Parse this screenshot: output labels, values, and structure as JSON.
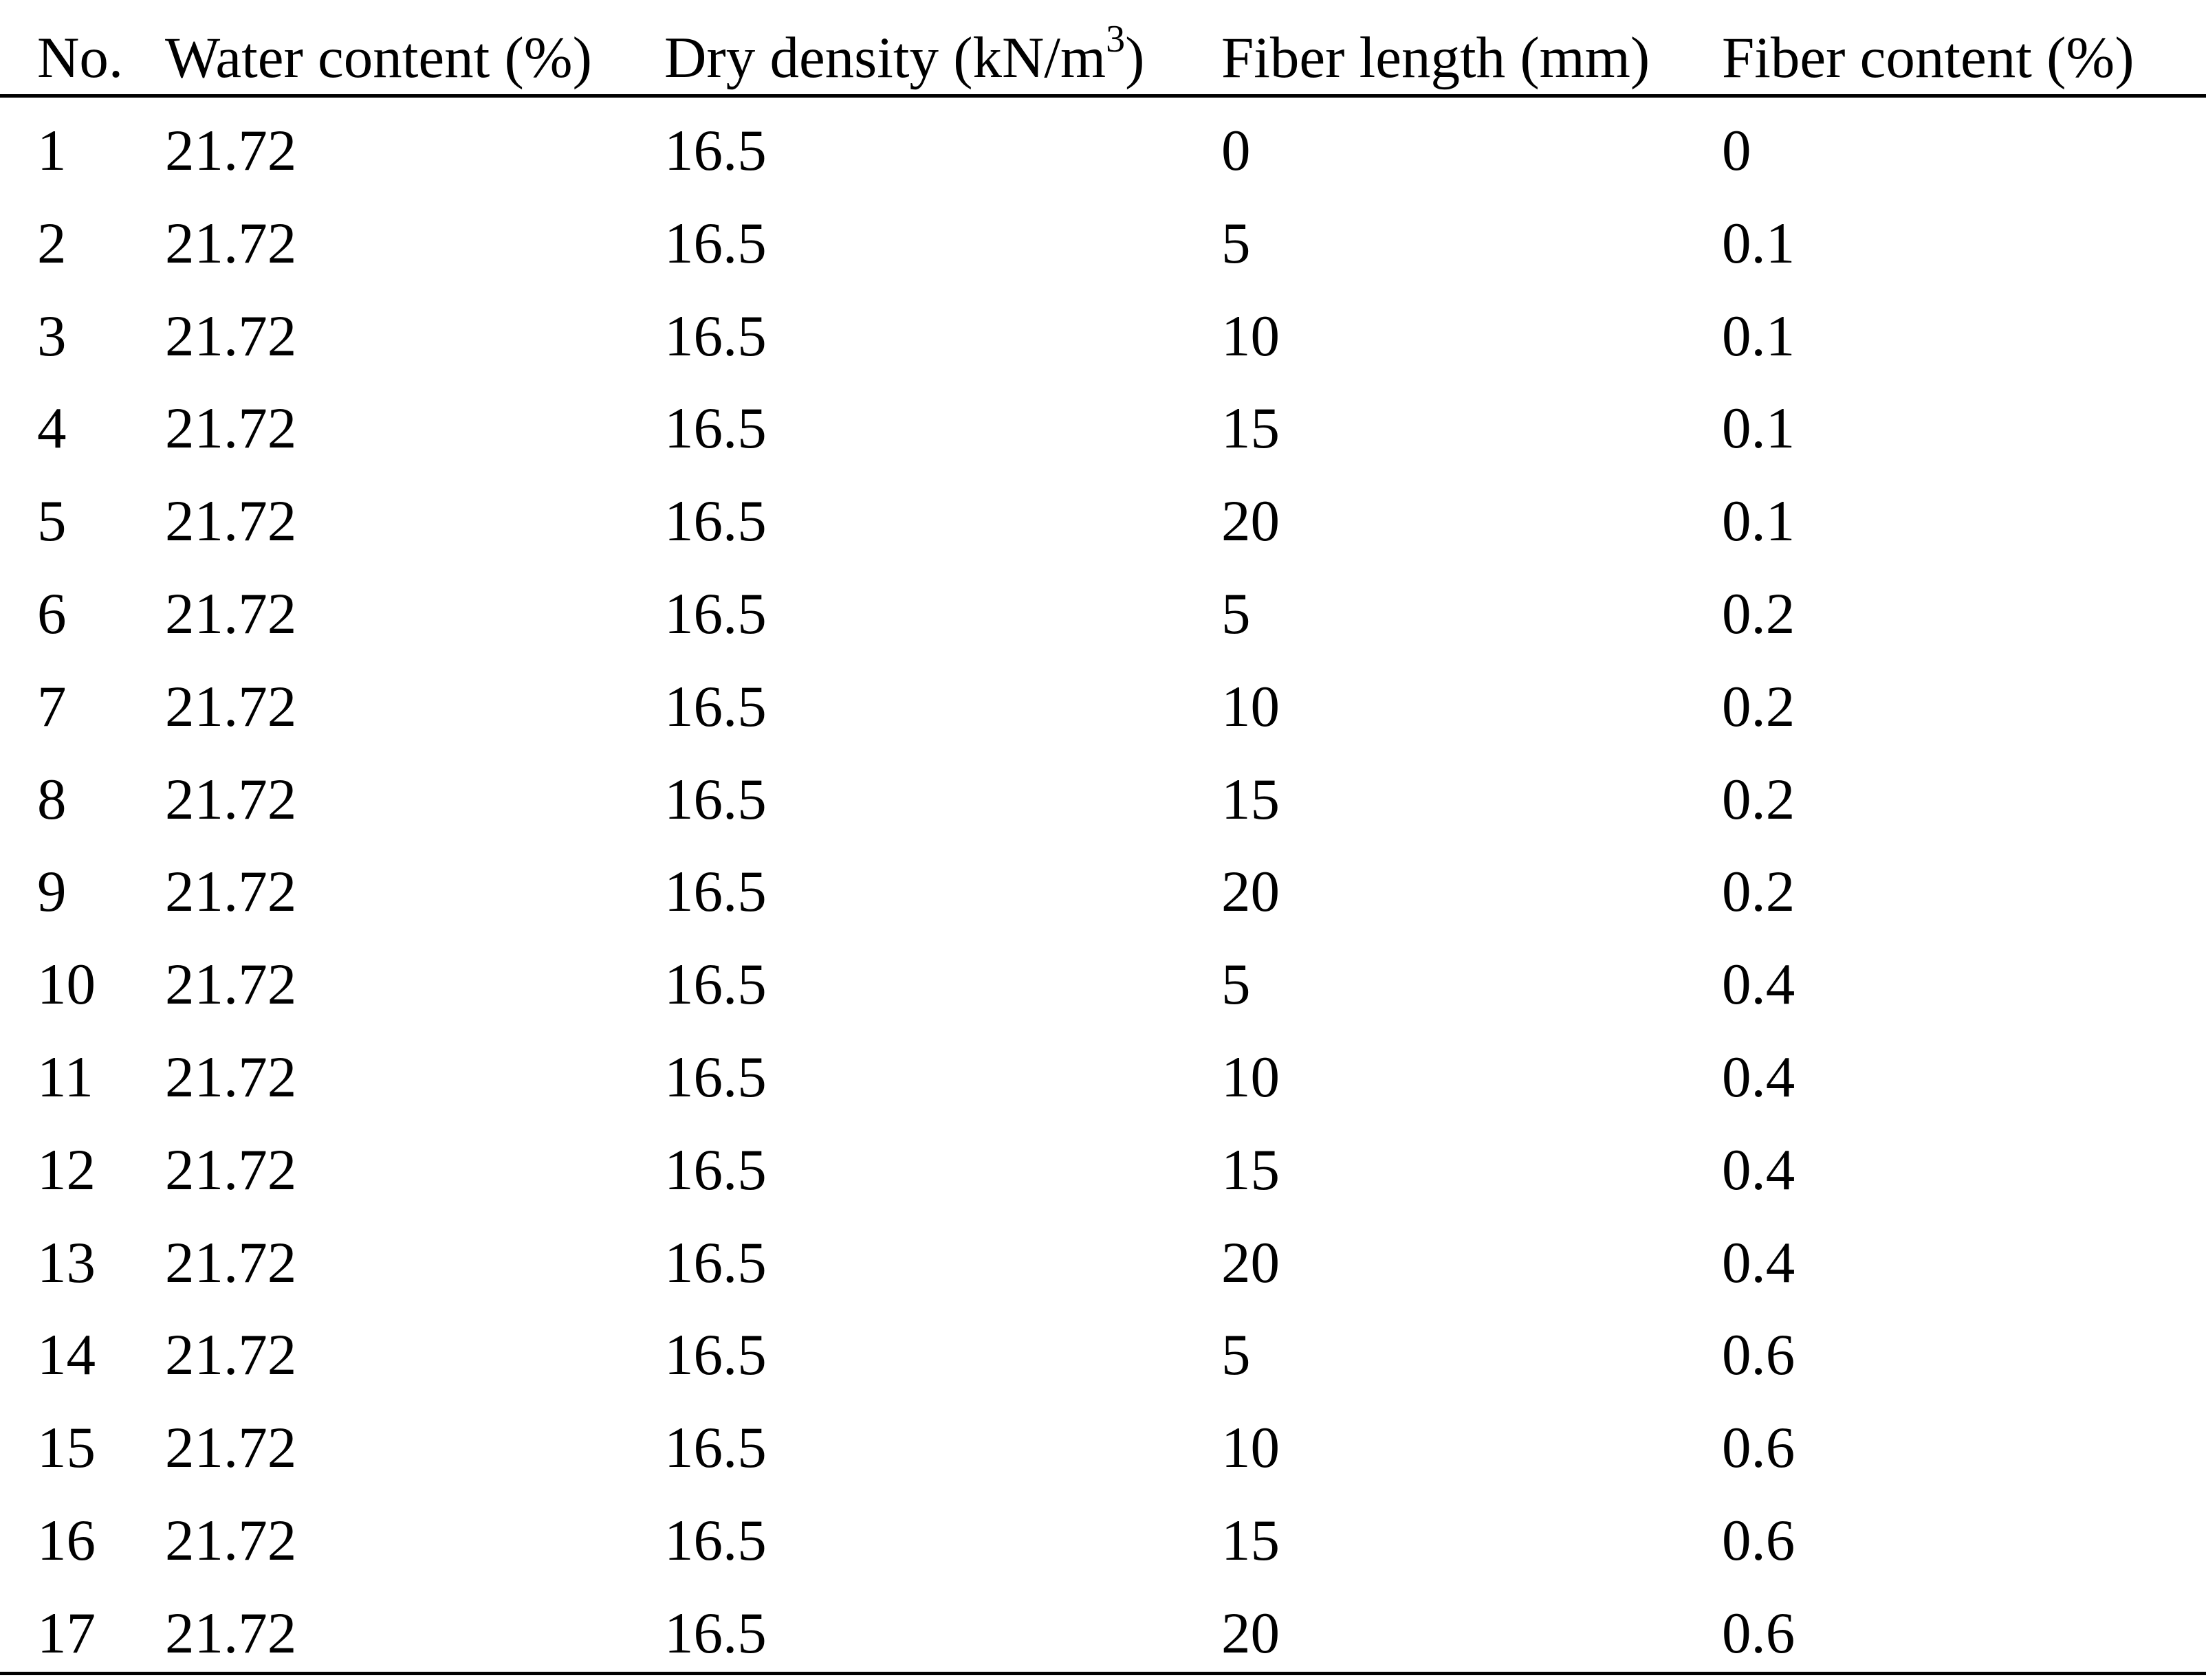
{
  "table": {
    "headers": {
      "no": "No.",
      "water_content": "Water content (%)",
      "dry_density_prefix": "Dry density (kN/m",
      "dry_density_exp": "3",
      "dry_density_suffix": ")",
      "fiber_length": "Fiber length (mm)",
      "fiber_content": "Fiber content (%)"
    },
    "rows": [
      [
        "1",
        "21.72",
        "16.5",
        "0",
        "0"
      ],
      [
        "2",
        "21.72",
        "16.5",
        "5",
        "0.1"
      ],
      [
        "3",
        "21.72",
        "16.5",
        "10",
        "0.1"
      ],
      [
        "4",
        "21.72",
        "16.5",
        "15",
        "0.1"
      ],
      [
        "5",
        "21.72",
        "16.5",
        "20",
        "0.1"
      ],
      [
        "6",
        "21.72",
        "16.5",
        "5",
        "0.2"
      ],
      [
        "7",
        "21.72",
        "16.5",
        "10",
        "0.2"
      ],
      [
        "8",
        "21.72",
        "16.5",
        "15",
        "0.2"
      ],
      [
        "9",
        "21.72",
        "16.5",
        "20",
        "0.2"
      ],
      [
        "10",
        "21.72",
        "16.5",
        "5",
        "0.4"
      ],
      [
        "11",
        "21.72",
        "16.5",
        "10",
        "0.4"
      ],
      [
        "12",
        "21.72",
        "16.5",
        "15",
        "0.4"
      ],
      [
        "13",
        "21.72",
        "16.5",
        "20",
        "0.4"
      ],
      [
        "14",
        "21.72",
        "16.5",
        "5",
        "0.6"
      ],
      [
        "15",
        "21.72",
        "16.5",
        "10",
        "0.6"
      ],
      [
        "16",
        "21.72",
        "16.5",
        "15",
        "0.6"
      ],
      [
        "17",
        "21.72",
        "16.5",
        "20",
        "0.6"
      ]
    ]
  }
}
